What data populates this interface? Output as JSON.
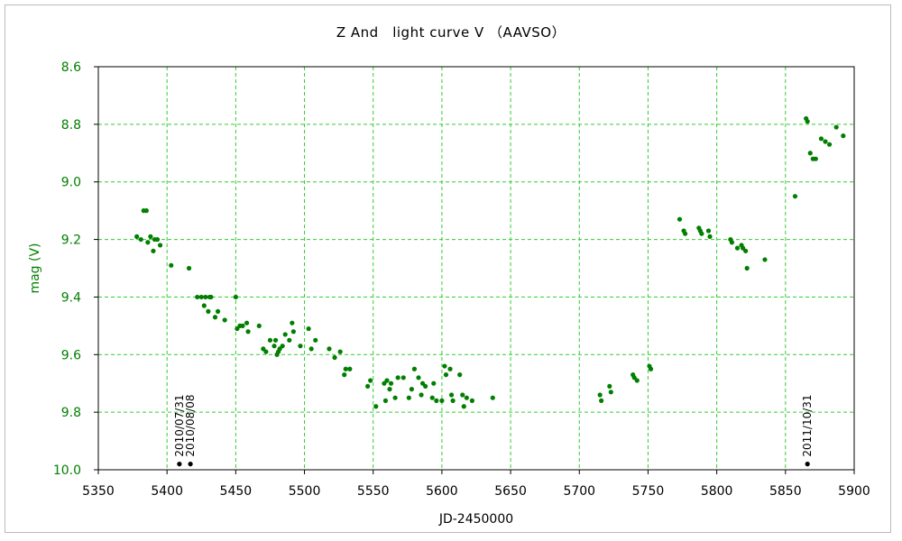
{
  "colors": {
    "series": "#007f00",
    "ytext": "#007f00",
    "grid": "#33cc33",
    "marker": "#000000",
    "axis": "#000000",
    "frame": "#b9b9b9"
  },
  "chart_data": {
    "type": "scatter",
    "title": "Z And　light curve  V （AAVSO）",
    "xlabel": "JD-2450000",
    "ylabel": "mag (V)",
    "xlim": [
      5350,
      5900
    ],
    "ylim": [
      10.0,
      8.6
    ],
    "y_inverted": true,
    "grid": true,
    "xticks": [
      "5350",
      "5400",
      "5450",
      "5500",
      "5550",
      "5600",
      "5650",
      "5700",
      "5750",
      "5800",
      "5850",
      "5900"
    ],
    "yticks": [
      "8.6",
      "8.8",
      "9.0",
      "9.2",
      "9.4",
      "9.6",
      "9.8",
      "10.0"
    ],
    "series": [
      {
        "points": [
          [
            5378,
            9.19
          ],
          [
            5381,
            9.2
          ],
          [
            5383,
            9.1
          ],
          [
            5385,
            9.1
          ],
          [
            5386,
            9.21
          ],
          [
            5388,
            9.19
          ],
          [
            5390,
            9.24
          ],
          [
            5391,
            9.2
          ],
          [
            5393,
            9.2
          ],
          [
            5395,
            9.22
          ],
          [
            5403,
            9.29
          ],
          [
            5416,
            9.3
          ],
          [
            5422,
            9.4
          ],
          [
            5425,
            9.4
          ],
          [
            5427,
            9.43
          ],
          [
            5428,
            9.4
          ],
          [
            5430,
            9.45
          ],
          [
            5431,
            9.4
          ],
          [
            5432,
            9.4
          ],
          [
            5435,
            9.47
          ],
          [
            5437,
            9.45
          ],
          [
            5442,
            9.48
          ],
          [
            5450,
            9.4
          ],
          [
            5451,
            9.51
          ],
          [
            5453,
            9.5
          ],
          [
            5455,
            9.5
          ],
          [
            5458,
            9.49
          ],
          [
            5459,
            9.52
          ],
          [
            5467,
            9.5
          ],
          [
            5470,
            9.58
          ],
          [
            5472,
            9.59
          ],
          [
            5475,
            9.55
          ],
          [
            5478,
            9.57
          ],
          [
            5479,
            9.55
          ],
          [
            5480,
            9.6
          ],
          [
            5481,
            9.59
          ],
          [
            5482,
            9.58
          ],
          [
            5484,
            9.57
          ],
          [
            5486,
            9.53
          ],
          [
            5489,
            9.55
          ],
          [
            5491,
            9.49
          ],
          [
            5492,
            9.52
          ],
          [
            5497,
            9.57
          ],
          [
            5503,
            9.51
          ],
          [
            5505,
            9.58
          ],
          [
            5508,
            9.55
          ],
          [
            5518,
            9.58
          ],
          [
            5522,
            9.61
          ],
          [
            5526,
            9.59
          ],
          [
            5529,
            9.67
          ],
          [
            5530,
            9.65
          ],
          [
            5533,
            9.65
          ],
          [
            5546,
            9.71
          ],
          [
            5548,
            9.69
          ],
          [
            5552,
            9.78
          ],
          [
            5558,
            9.7
          ],
          [
            5559,
            9.76
          ],
          [
            5560,
            9.69
          ],
          [
            5562,
            9.72
          ],
          [
            5563,
            9.7
          ],
          [
            5566,
            9.75
          ],
          [
            5568,
            9.68
          ],
          [
            5572,
            9.68
          ],
          [
            5576,
            9.75
          ],
          [
            5578,
            9.72
          ],
          [
            5580,
            9.65
          ],
          [
            5583,
            9.68
          ],
          [
            5585,
            9.74
          ],
          [
            5586,
            9.7
          ],
          [
            5588,
            9.71
          ],
          [
            5593,
            9.75
          ],
          [
            5594,
            9.7
          ],
          [
            5596,
            9.76
          ],
          [
            5600,
            9.76
          ],
          [
            5602,
            9.64
          ],
          [
            5603,
            9.67
          ],
          [
            5606,
            9.65
          ],
          [
            5607,
            9.74
          ],
          [
            5608,
            9.76
          ],
          [
            5613,
            9.67
          ],
          [
            5615,
            9.74
          ],
          [
            5616,
            9.78
          ],
          [
            5618,
            9.75
          ],
          [
            5622,
            9.76
          ],
          [
            5637,
            9.75
          ],
          [
            5715,
            9.74
          ],
          [
            5716,
            9.76
          ],
          [
            5722,
            9.71
          ],
          [
            5723,
            9.73
          ],
          [
            5739,
            9.67
          ],
          [
            5740,
            9.68
          ],
          [
            5742,
            9.69
          ],
          [
            5751,
            9.64
          ],
          [
            5752,
            9.65
          ],
          [
            5773,
            9.13
          ],
          [
            5776,
            9.17
          ],
          [
            5777,
            9.18
          ],
          [
            5787,
            9.16
          ],
          [
            5788,
            9.17
          ],
          [
            5789,
            9.18
          ],
          [
            5794,
            9.17
          ],
          [
            5795,
            9.19
          ],
          [
            5810,
            9.2
          ],
          [
            5811,
            9.21
          ],
          [
            5815,
            9.23
          ],
          [
            5818,
            9.22
          ],
          [
            5819,
            9.23
          ],
          [
            5821,
            9.24
          ],
          [
            5822,
            9.3
          ],
          [
            5835,
            9.27
          ],
          [
            5857,
            9.05
          ],
          [
            5865,
            8.78
          ],
          [
            5866,
            8.79
          ],
          [
            5868,
            8.9
          ],
          [
            5870,
            8.92
          ],
          [
            5872,
            8.92
          ],
          [
            5876,
            8.85
          ],
          [
            5879,
            8.86
          ],
          [
            5882,
            8.87
          ],
          [
            5887,
            8.81
          ],
          [
            5892,
            8.84
          ]
        ]
      }
    ],
    "annotations": [
      {
        "label": "2010/07/31",
        "x": 5409,
        "y": 9.98
      },
      {
        "label": "2010/08/08",
        "x": 5417,
        "y": 9.98
      },
      {
        "label": "2011/10/31",
        "x": 5866,
        "y": 9.98
      }
    ]
  }
}
